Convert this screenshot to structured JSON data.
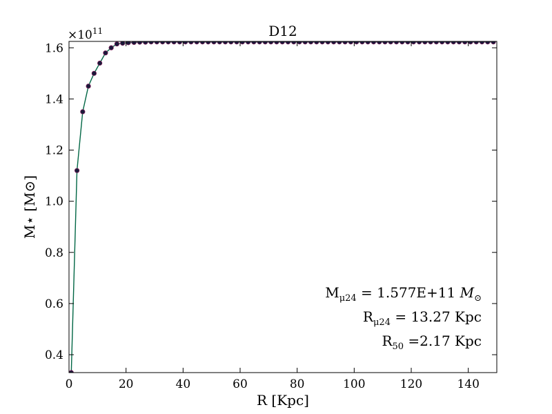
{
  "chart_data": {
    "type": "line",
    "title": "D12",
    "xlabel": "R [Kpc]",
    "ylabel": "M⋆ [M⊙]",
    "xlim": [
      0,
      150
    ],
    "ylim": [
      0.33,
      1.625
    ],
    "y_multiplier": "×10",
    "y_multiplier_exp": "11",
    "x_ticks": [
      0,
      20,
      40,
      60,
      80,
      100,
      120,
      140
    ],
    "y_ticks": [
      0.4,
      0.6,
      0.8,
      1.0,
      1.2,
      1.4,
      1.6
    ],
    "x_tick_labels": [
      "0",
      "20",
      "40",
      "60",
      "80",
      "100",
      "120",
      "140"
    ],
    "y_tick_labels": [
      "0.4",
      "0.6",
      "0.8",
      "1.0",
      "1.2",
      "1.4",
      "1.6"
    ],
    "grid": false,
    "line_color": "#006644",
    "marker_color": "#1a1a3a",
    "marker_edge_color": "#7a1f5a",
    "series": [
      {
        "x": [
          0.8,
          2.8,
          4.8,
          6.8,
          8.8,
          10.8,
          12.8,
          14.8,
          16.8,
          18.8,
          20.8,
          22.8,
          24.8,
          26.8,
          28.8,
          30.8,
          32.8,
          34.8,
          36.8,
          38.8,
          40.8,
          42.8,
          44.8,
          46.8,
          48.8,
          50.8,
          52.8,
          54.8,
          56.8,
          58.8,
          60.8,
          62.8,
          64.8,
          66.8,
          68.8,
          70.8,
          72.8,
          74.8,
          76.8,
          78.8,
          80.8,
          82.8,
          84.8,
          86.8,
          88.8,
          90.8,
          92.8,
          94.8,
          96.8,
          98.8,
          100.8,
          102.8,
          104.8,
          106.8,
          108.8,
          110.8,
          112.8,
          114.8,
          116.8,
          118.8,
          120.8,
          122.8,
          124.8,
          126.8,
          128.8,
          130.8,
          132.8,
          134.8,
          136.8,
          138.8,
          140.8,
          142.8,
          144.8,
          146.8,
          148.8
        ],
        "y": [
          0.33,
          1.12,
          1.35,
          1.45,
          1.5,
          1.54,
          1.58,
          1.6,
          1.615,
          1.618,
          1.62,
          1.621,
          1.622,
          1.622,
          1.623,
          1.623,
          1.623,
          1.623,
          1.623,
          1.623,
          1.623,
          1.623,
          1.623,
          1.623,
          1.623,
          1.623,
          1.623,
          1.623,
          1.623,
          1.623,
          1.623,
          1.623,
          1.623,
          1.623,
          1.623,
          1.623,
          1.623,
          1.623,
          1.623,
          1.623,
          1.623,
          1.623,
          1.623,
          1.623,
          1.623,
          1.623,
          1.623,
          1.623,
          1.623,
          1.623,
          1.623,
          1.623,
          1.623,
          1.623,
          1.623,
          1.623,
          1.623,
          1.623,
          1.623,
          1.623,
          1.623,
          1.623,
          1.623,
          1.623,
          1.623,
          1.623,
          1.623,
          1.623,
          1.623,
          1.623,
          1.623,
          1.623,
          1.623,
          1.623,
          1.623
        ]
      }
    ],
    "annotations": [
      {
        "main": "M",
        "sub": "μ24",
        "rest": " = 1.577E+11 ",
        "italic_tail": "M",
        "tail_sub": "⊙"
      },
      {
        "main": "R",
        "sub": "μ24",
        "rest": " = 13.27 Kpc"
      },
      {
        "main": "R",
        "sub": "50",
        "rest": " =2.17 Kpc"
      }
    ]
  }
}
